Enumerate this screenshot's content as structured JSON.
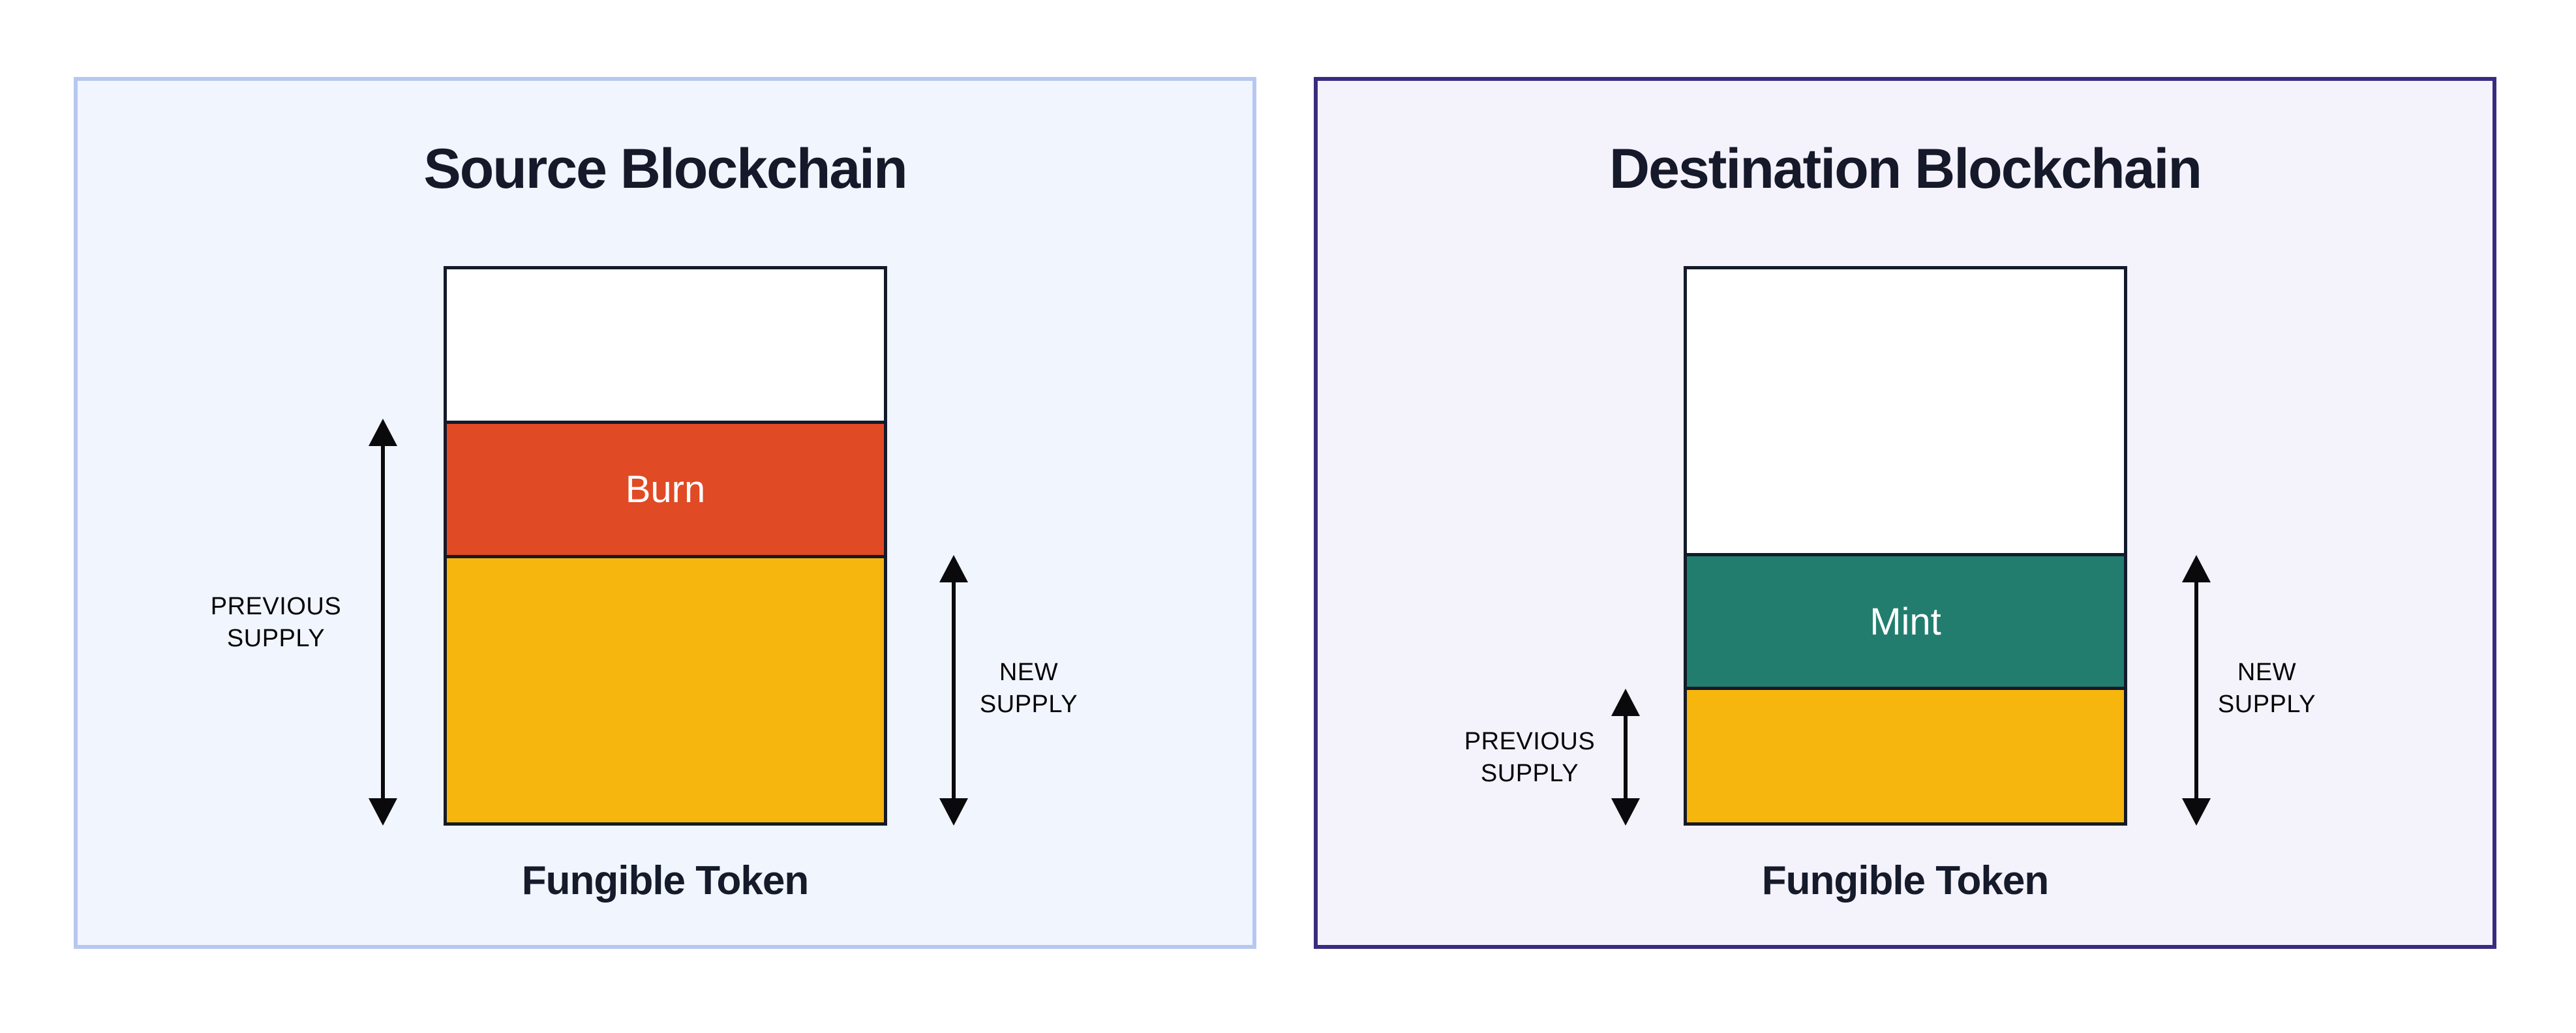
{
  "page": {
    "background": "#ffffff",
    "arrow_color": "#0a0a0c",
    "dark_text_color": "#161b2b"
  },
  "panels": [
    {
      "title": "Source Blockchain",
      "token_label": "Fungible Token",
      "theme": {
        "background": "#F1F5FD",
        "border": "#B7C8F0"
      },
      "bar": {
        "outline": "#131a2b",
        "segments": [
          {
            "name": "headroom",
            "label": "",
            "color": "#FFFFFF",
            "height": "27.3%"
          },
          {
            "name": "burn",
            "label": "Burn",
            "color": "#E04A24",
            "height": "24.4%",
            "label_color": "#FFFFFF"
          },
          {
            "name": "new-supply",
            "label": "",
            "color": "#F6B60D",
            "height": "48.3%"
          }
        ]
      },
      "annotations": {
        "previous_supply": "PREVIOUS SUPPLY",
        "new_supply": "NEW SUPPLY"
      }
    },
    {
      "title": "Destination Blockchain",
      "token_label": "Fungible Token",
      "theme": {
        "background": "#F4F2FB",
        "border": "#3A2B82"
      },
      "bar": {
        "outline": "#131a2b",
        "segments": [
          {
            "name": "headroom",
            "label": "",
            "color": "#FFFFFF",
            "height": "51.3%"
          },
          {
            "name": "mint",
            "label": "Mint",
            "color": "#227D6F",
            "height": "24.2%",
            "label_color": "#FFFFFF"
          },
          {
            "name": "previous-supply",
            "label": "",
            "color": "#F6B60D",
            "height": "24.5%"
          }
        ]
      },
      "annotations": {
        "previous_supply": "PREVIOUS SUPPLY",
        "new_supply": "NEW SUPPLY"
      }
    }
  ]
}
